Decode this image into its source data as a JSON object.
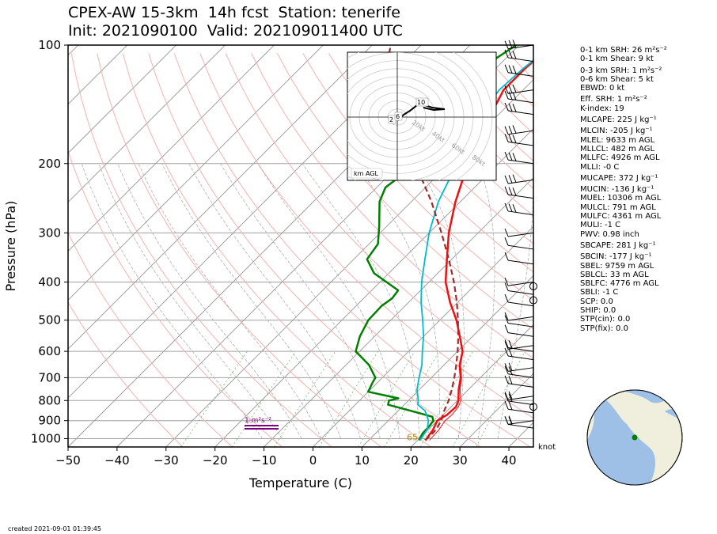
{
  "title": {
    "line1": "CPEX-AW 15-3km  14h fcst  Station: tenerife",
    "line2": "Init: 2021090100  Valid: 202109011400 UTC"
  },
  "chart_data": {
    "type": "skew-t",
    "xlabel": "Temperature (C)",
    "ylabel": "Pressure (hPa)",
    "xlim": [
      -50,
      45
    ],
    "ylim": [
      1050,
      100
    ],
    "x_ticks": [
      -50,
      -40,
      -30,
      -20,
      -10,
      0,
      10,
      20,
      30,
      40
    ],
    "x_tick_labels": [
      "−50",
      "−40",
      "−30",
      "−20",
      "−10",
      "0",
      "10",
      "20",
      "30",
      "40"
    ],
    "p_ticks": [
      100,
      200,
      300,
      400,
      500,
      600,
      700,
      800,
      900,
      1000
    ],
    "p_tick_labels": [
      "100",
      "200",
      "300",
      "400",
      "500",
      "600",
      "700",
      "800",
      "900",
      "1000"
    ],
    "series": [
      {
        "role": "temperature",
        "color": "#ee1111",
        "points": [
          [
            1010,
            21.6
          ],
          [
            950,
            21.0
          ],
          [
            900,
            20.0
          ],
          [
            870,
            20.8
          ],
          [
            830,
            21.0
          ],
          [
            800,
            20.2
          ],
          [
            750,
            18.0
          ],
          [
            700,
            16.0
          ],
          [
            650,
            13.2
          ],
          [
            600,
            11.0
          ],
          [
            550,
            7.4
          ],
          [
            500,
            3.4
          ],
          [
            450,
            -1.6
          ],
          [
            400,
            -6.6
          ],
          [
            350,
            -11.0
          ],
          [
            300,
            -16.0
          ],
          [
            250,
            -21.0
          ],
          [
            220,
            -24.0
          ],
          [
            200,
            -26.0
          ],
          [
            175,
            -28.7
          ],
          [
            150,
            -31.6
          ],
          [
            130,
            -34.0
          ],
          [
            115,
            -34.0
          ],
          [
            100,
            -33.3
          ]
        ]
      },
      {
        "role": "virtual-temperature",
        "color": "#ee1111",
        "points": [
          [
            1010,
            22.4
          ],
          [
            950,
            22.2
          ],
          [
            900,
            21.6
          ],
          [
            870,
            21.8
          ],
          [
            830,
            21.5
          ],
          [
            800,
            20.7
          ],
          [
            750,
            18.3
          ],
          [
            700,
            16.2
          ],
          [
            650,
            13.4
          ],
          [
            600,
            11.1
          ]
        ]
      },
      {
        "role": "dewpoint",
        "color": "#008000",
        "points": [
          [
            1010,
            20.3
          ],
          [
            970,
            19.6
          ],
          [
            930,
            19.5
          ],
          [
            900,
            19.2
          ],
          [
            880,
            18.2
          ],
          [
            860,
            14.6
          ],
          [
            820,
            6.7
          ],
          [
            800,
            6.0
          ],
          [
            790,
            7.5
          ],
          [
            760,
            0.0
          ],
          [
            720,
            -1.0
          ],
          [
            700,
            -1.4
          ],
          [
            650,
            -5.3
          ],
          [
            600,
            -10.8
          ],
          [
            550,
            -13.0
          ],
          [
            500,
            -14.6
          ],
          [
            460,
            -14.8
          ],
          [
            440,
            -14.2
          ],
          [
            420,
            -14.6
          ],
          [
            380,
            -23.0
          ],
          [
            350,
            -27.3
          ],
          [
            320,
            -28.2
          ],
          [
            290,
            -31.4
          ],
          [
            250,
            -36.5
          ],
          [
            230,
            -38.2
          ],
          [
            210,
            -37.2
          ],
          [
            195,
            -40.0
          ],
          [
            175,
            -41.0
          ],
          [
            150,
            -45.1
          ],
          [
            130,
            -43.5
          ],
          [
            110,
            -42.3
          ],
          [
            100,
            -40.6
          ]
        ]
      },
      {
        "role": "wet-bulb",
        "color": "#00bbcc",
        "points": [
          [
            1010,
            20.5
          ],
          [
            950,
            19.8
          ],
          [
            900,
            18.2
          ],
          [
            850,
            15.5
          ],
          [
            820,
            12.8
          ],
          [
            800,
            12.0
          ],
          [
            750,
            9.5
          ],
          [
            700,
            7.5
          ],
          [
            650,
            5.5
          ],
          [
            600,
            2.8
          ],
          [
            550,
            0.0
          ],
          [
            500,
            -3.5
          ],
          [
            450,
            -7.5
          ],
          [
            400,
            -11.5
          ],
          [
            350,
            -15.5
          ],
          [
            300,
            -20.0
          ],
          [
            250,
            -24.5
          ],
          [
            200,
            -28.5
          ],
          [
            175,
            -31.0
          ],
          [
            150,
            -33.5
          ],
          [
            130,
            -34.9
          ],
          [
            115,
            -34.4
          ],
          [
            100,
            -33.3
          ]
        ]
      },
      {
        "role": "surface-parcel",
        "color": "#a52a2a",
        "points": [
          [
            1010,
            21.6
          ],
          [
            950,
            21.6
          ],
          [
            900,
            20.8
          ],
          [
            850,
            19.4
          ],
          [
            800,
            18.2
          ],
          [
            750,
            16.6
          ],
          [
            700,
            14.7
          ],
          [
            650,
            12.5
          ],
          [
            600,
            10.0
          ],
          [
            550,
            7.1
          ],
          [
            500,
            3.7
          ],
          [
            450,
            -0.2
          ],
          [
            400,
            -4.9
          ],
          [
            350,
            -10.6
          ],
          [
            300,
            -17.5
          ],
          [
            250,
            -25.9
          ],
          [
            200,
            -37.0
          ],
          [
            150,
            -52.5
          ],
          [
            120,
            -61.0
          ],
          [
            100,
            -66.2
          ]
        ]
      }
    ],
    "annotations": {
      "srh_label": "1 m²s⁻²",
      "cloud_base_label": "65",
      "hodograph_labels": [
        "10",
        "2",
        "6"
      ],
      "hodograph_ring_labels": [
        "20kt",
        "40kt",
        "60kt",
        "80kt"
      ],
      "hodograph_axis_label": "km AGL",
      "wind_unit": "knot"
    }
  },
  "stats": [
    "0-1 km SRH: 26 m²s⁻²",
    "0-1 km Shear: 9 kt",
    "0-3 km SRH: 1 m²s⁻²",
    "0-6 km Shear: 5 kt",
    "EBWD: 0 kt",
    "Eff. SRH: 1 m²s⁻²",
    "K-index: 19",
    "MLCAPE: 225 J kg⁻¹",
    "MLCIN: -205 J kg⁻¹",
    "MLEL: 9633 m AGL",
    "MLLCL: 482 m AGL",
    "MLLFC: 4926 m AGL",
    "MLLI: -0 C",
    "MUCAPE: 372 J kg⁻¹",
    "MUCIN: -136 J kg⁻¹",
    "MUEL: 10306 m AGL",
    "MULCL: 791 m AGL",
    "MULFC: 4361 m AGL",
    "MULI: -1 C",
    "PWV: 0.98 inch",
    "SBCAPE: 281 J kg⁻¹",
    "SBCIN: -177 J kg⁻¹",
    "SBEL: 9759 m AGL",
    "SBLCL: 33 m AGL",
    "SBLFC: 4776 m AGL",
    "SBLI: -1 C",
    "SCP: 0.0",
    "SHIP: 0.0",
    "STP(cin): 0.0",
    "STP(fix): 0.0"
  ],
  "footer": {
    "created": "created 2021-09-01 01:39:45"
  }
}
